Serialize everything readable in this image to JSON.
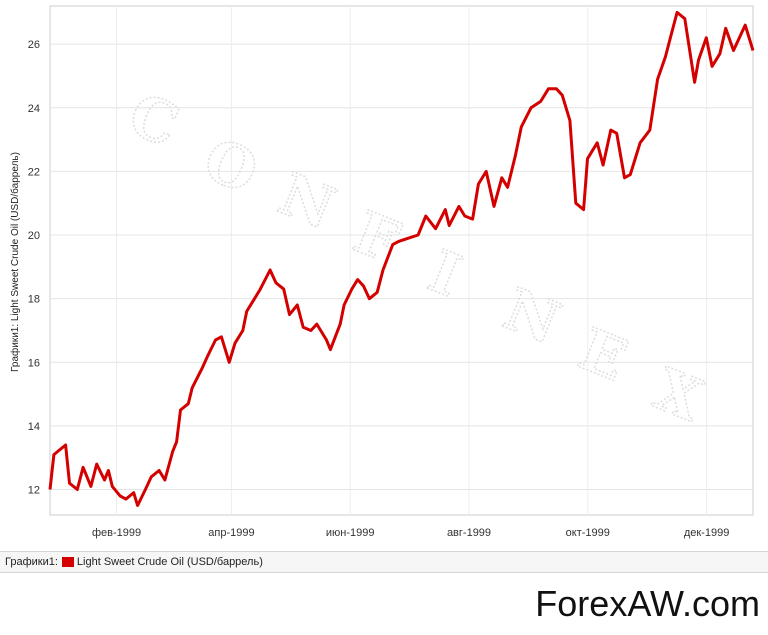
{
  "chart_data": {
    "type": "line",
    "ylabel": "Графики1: Light Sweet Crude Oil (USD/баррель)",
    "xlabel": "",
    "title": "",
    "x_ticks": [
      "фев-1999",
      "апр-1999",
      "июн-1999",
      "авг-1999",
      "окт-1999",
      "дек-1999"
    ],
    "y_ticks": [
      12,
      14,
      16,
      18,
      20,
      22,
      24,
      26
    ],
    "ylim": [
      11.2,
      27.2
    ],
    "xlim": [
      "1999-01-04",
      "1999-12-31"
    ],
    "grid": true,
    "legend_placement": "bottom",
    "series": [
      {
        "name": "Light Sweet Crude Oil (USD/баррель)",
        "color": "#d40000",
        "x": [
          "1999-01-04",
          "1999-01-06",
          "1999-01-08",
          "1999-01-12",
          "1999-01-14",
          "1999-01-18",
          "1999-01-21",
          "1999-01-25",
          "1999-01-28",
          "1999-02-01",
          "1999-02-03",
          "1999-02-05",
          "1999-02-09",
          "1999-02-12",
          "1999-02-16",
          "1999-02-18",
          "1999-02-22",
          "1999-02-25",
          "1999-03-01",
          "1999-03-04",
          "1999-03-08",
          "1999-03-10",
          "1999-03-12",
          "1999-03-16",
          "1999-03-18",
          "1999-03-23",
          "1999-03-26",
          "1999-03-30",
          "1999-04-02",
          "1999-04-06",
          "1999-04-09",
          "1999-04-13",
          "1999-04-15",
          "1999-04-19",
          "1999-04-22",
          "1999-04-27",
          "1999-04-30",
          "1999-05-04",
          "1999-05-07",
          "1999-05-11",
          "1999-05-14",
          "1999-05-18",
          "1999-05-21",
          "1999-05-26",
          "1999-05-28",
          "1999-06-02",
          "1999-06-04",
          "1999-06-08",
          "1999-06-11",
          "1999-06-14",
          "1999-06-17",
          "1999-06-21",
          "1999-06-24",
          "1999-06-29",
          "1999-07-02",
          "1999-07-07",
          "1999-07-12",
          "1999-07-16",
          "1999-07-21",
          "1999-07-26",
          "1999-07-28",
          "1999-08-02",
          "1999-08-05",
          "1999-08-09",
          "1999-08-12",
          "1999-08-16",
          "1999-08-20",
          "1999-08-24",
          "1999-08-27",
          "1999-08-31",
          "1999-09-03",
          "1999-09-08",
          "1999-09-13",
          "1999-09-17",
          "1999-09-21",
          "1999-09-24",
          "1999-09-28",
          "1999-10-01",
          "1999-10-05",
          "1999-10-07",
          "1999-10-12",
          "1999-10-15",
          "1999-10-19",
          "1999-10-22",
          "1999-10-26",
          "1999-10-29",
          "1999-11-03",
          "1999-11-08",
          "1999-11-12",
          "1999-11-16",
          "1999-11-19",
          "1999-11-22",
          "1999-11-26",
          "1999-12-01",
          "1999-12-03",
          "1999-12-07",
          "1999-12-10",
          "1999-12-14",
          "1999-12-17",
          "1999-12-21",
          "1999-12-27",
          "1999-12-31"
        ],
        "values": [
          12.0,
          13.1,
          13.2,
          13.4,
          12.2,
          12.0,
          12.7,
          12.1,
          12.8,
          12.3,
          12.6,
          12.1,
          11.8,
          11.7,
          11.9,
          11.5,
          12.0,
          12.4,
          12.6,
          12.3,
          13.2,
          13.5,
          14.5,
          14.7,
          15.2,
          15.8,
          16.2,
          16.7,
          16.8,
          16.0,
          16.6,
          17.0,
          17.6,
          18.0,
          18.3,
          18.9,
          18.5,
          18.3,
          17.5,
          17.8,
          17.1,
          17.0,
          17.2,
          16.7,
          16.4,
          17.2,
          17.8,
          18.3,
          18.6,
          18.4,
          18.0,
          18.2,
          18.9,
          19.7,
          19.8,
          19.9,
          20.0,
          20.6,
          20.2,
          20.8,
          20.3,
          20.9,
          20.6,
          20.5,
          21.6,
          22.0,
          20.9,
          21.8,
          21.5,
          22.5,
          23.4,
          24.0,
          24.2,
          24.6,
          24.6,
          24.4,
          23.6,
          21.0,
          20.8,
          22.4,
          22.9,
          22.2,
          23.3,
          23.2,
          21.8,
          21.9,
          22.9,
          23.3,
          24.9,
          25.6,
          26.3,
          27.0,
          26.8,
          24.8,
          25.5,
          26.2,
          25.3,
          25.7,
          26.5,
          25.8,
          26.6,
          25.8
        ]
      }
    ]
  },
  "legend": {
    "prefix": "Графики1:",
    "label": "Light Sweet Crude Oil (USD/баррель)"
  },
  "watermark": {
    "letters": [
      "C",
      "O",
      "N",
      "F",
      "I",
      "N",
      "E",
      "X"
    ],
    "brand": "ForexAW.com"
  }
}
